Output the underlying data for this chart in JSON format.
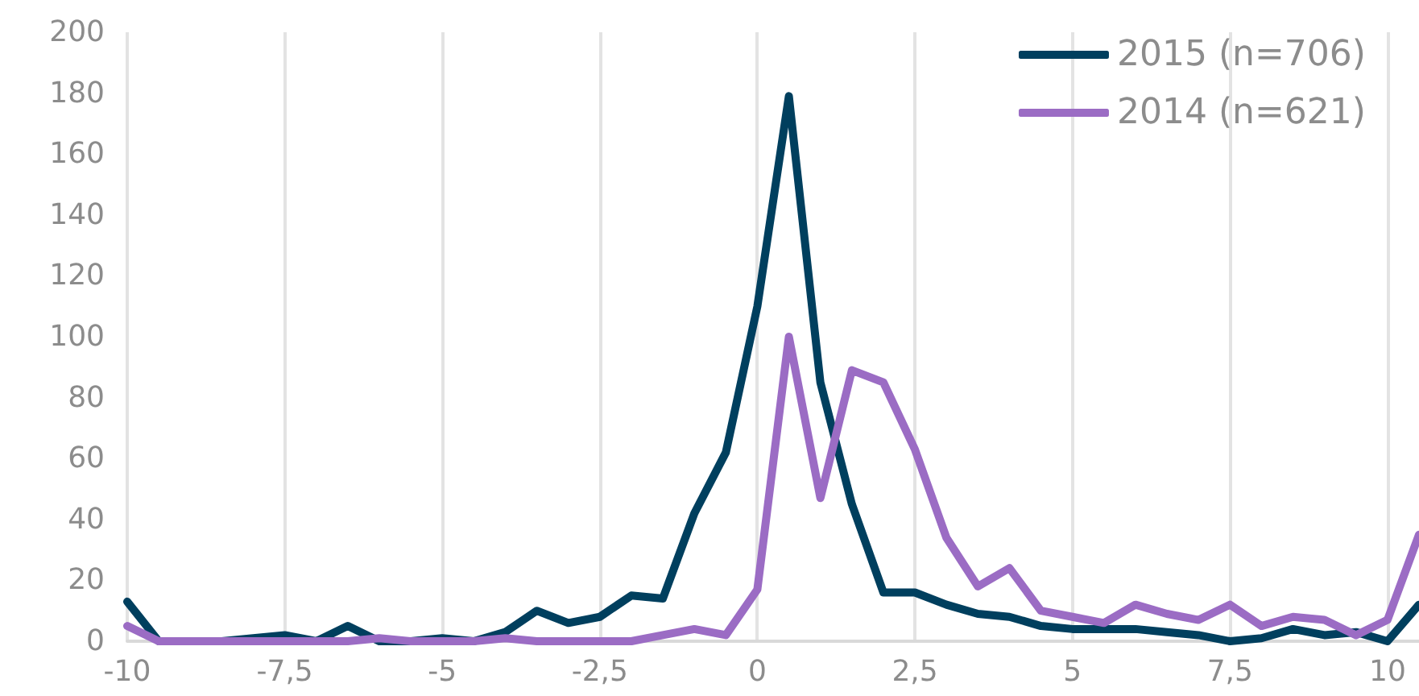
{
  "chart_data": {
    "type": "line",
    "x": [
      -10,
      -9.5,
      -9,
      -8.5,
      -8,
      -7.5,
      -7,
      -6.5,
      -6,
      -5.5,
      -5,
      -4.5,
      -4,
      -3.5,
      -3,
      -2.5,
      -2,
      -1.5,
      -1,
      -0.5,
      0,
      0.5,
      1,
      1.5,
      2,
      2.5,
      3,
      3.5,
      4,
      4.5,
      5,
      5.5,
      6,
      6.5,
      7,
      7.5,
      8,
      8.5,
      9,
      9.5,
      10,
      10.5
    ],
    "series": [
      {
        "name": "2015 (n=706)",
        "color": "#003f5e",
        "values": [
          13,
          0,
          0,
          0,
          1,
          2,
          0,
          5,
          0,
          0,
          1,
          0,
          3,
          10,
          6,
          8,
          15,
          14,
          42,
          62,
          110,
          179,
          85,
          45,
          16,
          16,
          12,
          9,
          8,
          5,
          4,
          4,
          4,
          3,
          2,
          0,
          1,
          4,
          2,
          3,
          0,
          12
        ]
      },
      {
        "name": "2014 (n=621)",
        "color": "#9b6cc4",
        "values": [
          5,
          0,
          0,
          0,
          0,
          0,
          0,
          0,
          1,
          0,
          0,
          0,
          1,
          0,
          0,
          0,
          0,
          2,
          4,
          2,
          17,
          100,
          47,
          89,
          85,
          63,
          34,
          18,
          24,
          10,
          8,
          6,
          12,
          9,
          7,
          12,
          5,
          8,
          7,
          2,
          7,
          35
        ]
      }
    ],
    "xlim": [
      -10,
      10.5
    ],
    "xticks": [
      -10,
      {
        "value": -7.5,
        "label": "-7,5"
      },
      -5,
      {
        "value": -2.5,
        "label": "-2,5"
      },
      0,
      {
        "value": 2.5,
        "label": "2,5"
      },
      5,
      {
        "value": 7.5,
        "label": "7,5"
      },
      10
    ],
    "ylim": [
      0,
      200
    ],
    "yticks": [
      0,
      20,
      40,
      60,
      80,
      100,
      120,
      140,
      160,
      180,
      200
    ],
    "grid": "x",
    "legend": "top right",
    "marker": "none",
    "line_style": "solid"
  }
}
